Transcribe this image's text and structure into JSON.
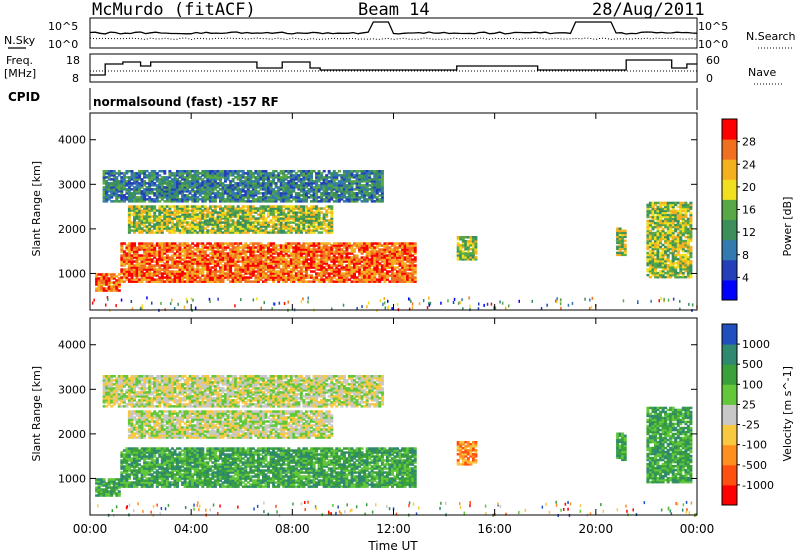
{
  "header": {
    "station": "McMurdo (fitACF)",
    "beam": "Beam 14",
    "date": "28/Aug/2011"
  },
  "top_panels": {
    "nsky_label": "N.Sky",
    "nsearch_label": "N.Search",
    "freq_label_1": "Freq.",
    "freq_label_2": "[MHz]",
    "nave_label": "Nave",
    "cpid_label": "CPID",
    "cpid_value": "normalsound (fast) -157 RF",
    "noise_ticks": [
      "10^5",
      "10^0"
    ],
    "freq_ticks": [
      "18",
      "8"
    ],
    "nave_ticks": [
      "60",
      "0"
    ]
  },
  "colors": {
    "power_scale": [
      "#0000ff",
      "#2440b8",
      "#337ab0",
      "#3b8f5a",
      "#58a848",
      "#f0e020",
      "#f5b020",
      "#f07020",
      "#ff0000"
    ],
    "velocity_scale": [
      "#ff0000",
      "#ff5010",
      "#ff9020",
      "#f8c840",
      "#c8c8c8",
      "#62c83a",
      "#3aa03a",
      "#2f8870",
      "#2050c0"
    ]
  },
  "chart_data": [
    {
      "type": "heatmap",
      "title": "",
      "xlabel": "Time UT",
      "ylabel": "Slant Range [km]",
      "colorbar_label": "Power [dB]",
      "colorbar_ticks": [
        "4",
        "8",
        "12",
        "16",
        "20",
        "24",
        "28"
      ],
      "xlim": [
        "00:00",
        "24:00"
      ],
      "ylim": [
        180,
        4600
      ],
      "x_tick_labels": [
        "00:00",
        "04:00",
        "08:00",
        "12:00",
        "16:00",
        "20:00",
        "00:00"
      ],
      "y_tick_labels": [
        "1000",
        "2000",
        "3000",
        "4000"
      ],
      "regions": [
        {
          "t": [
            0.2,
            1.2
          ],
          "r": [
            600,
            1000
          ],
          "level": "high"
        },
        {
          "t": [
            1.2,
            12.8
          ],
          "r": [
            800,
            1700
          ],
          "level": "high"
        },
        {
          "t": [
            1.5,
            9.5
          ],
          "r": [
            1900,
            2500
          ],
          "level": "medium"
        },
        {
          "t": [
            0.5,
            11.5
          ],
          "r": [
            2600,
            3300
          ],
          "level": "low"
        },
        {
          "t": [
            14.5,
            15.2
          ],
          "r": [
            1300,
            1800
          ],
          "level": "medium"
        },
        {
          "t": [
            20.8,
            21.2
          ],
          "r": [
            1400,
            2000
          ],
          "level": "medium"
        },
        {
          "t": [
            22.0,
            23.8
          ],
          "r": [
            900,
            2600
          ],
          "level": "medium"
        }
      ]
    },
    {
      "type": "heatmap",
      "title": "",
      "xlabel": "Time UT",
      "ylabel": "Slant Range [km]",
      "colorbar_label": "Velocity [m s^-1]",
      "colorbar_ticks": [
        "-1000",
        "-500",
        "-100",
        "-25",
        "25",
        "100",
        "500",
        "1000"
      ],
      "xlim": [
        "00:00",
        "24:00"
      ],
      "ylim": [
        180,
        4600
      ],
      "x_tick_labels": [
        "00:00",
        "04:00",
        "08:00",
        "12:00",
        "16:00",
        "20:00",
        "00:00"
      ],
      "y_tick_labels": [
        "1000",
        "2000",
        "3000",
        "4000"
      ],
      "regions": [
        {
          "t": [
            0.2,
            1.2
          ],
          "r": [
            600,
            1000
          ],
          "level": "positive"
        },
        {
          "t": [
            1.2,
            12.8
          ],
          "r": [
            800,
            1700
          ],
          "level": "positive"
        },
        {
          "t": [
            1.5,
            9.5
          ],
          "r": [
            1900,
            2500
          ],
          "level": "near-zero"
        },
        {
          "t": [
            0.5,
            11.5
          ],
          "r": [
            2600,
            3300
          ],
          "level": "near-zero"
        },
        {
          "t": [
            14.5,
            15.2
          ],
          "r": [
            1300,
            1800
          ],
          "level": "negative"
        },
        {
          "t": [
            20.8,
            21.2
          ],
          "r": [
            1400,
            2000
          ],
          "level": "positive"
        },
        {
          "t": [
            22.0,
            23.8
          ],
          "r": [
            900,
            2600
          ],
          "level": "positive"
        }
      ]
    }
  ]
}
